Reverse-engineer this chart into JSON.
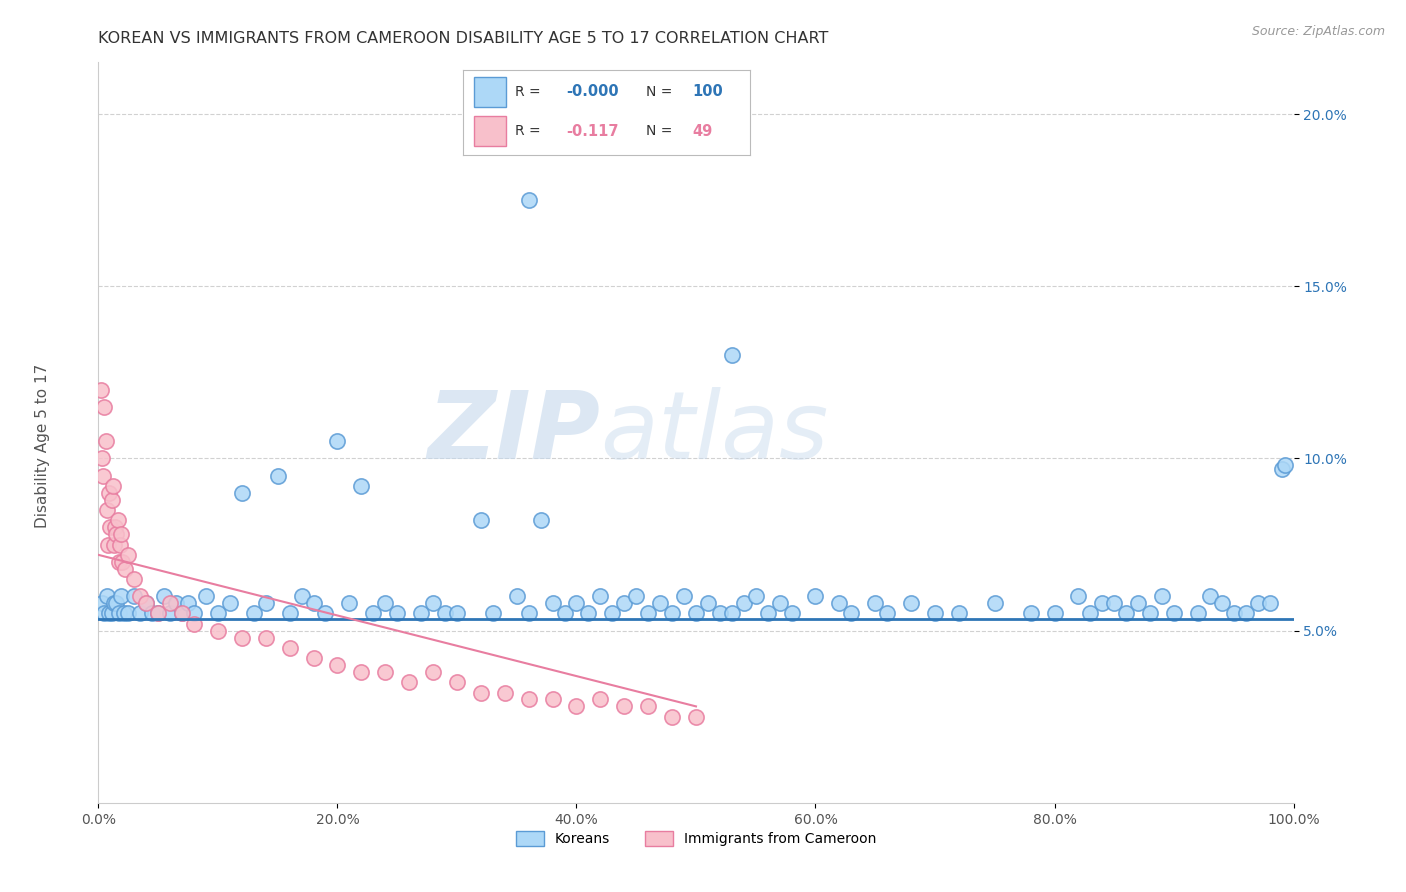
{
  "title": "KOREAN VS IMMIGRANTS FROM CAMEROON DISABILITY AGE 5 TO 17 CORRELATION CHART",
  "source": "Source: ZipAtlas.com",
  "xlabel": "",
  "ylabel": "Disability Age 5 to 17",
  "legend_label1": "Koreans",
  "legend_label2": "Immigrants from Cameroon",
  "r1": "-0.000",
  "n1": "100",
  "r2": "-0.117",
  "n2": "49",
  "color1": "#ADD8F7",
  "color2": "#F8C0CB",
  "edge1": "#5B9BD5",
  "edge2": "#E87DA0",
  "trend1_color": "#2E75B6",
  "trend2_color": "#E87DA0",
  "watermark_zip": "#C8D8E8",
  "watermark_atlas": "#C8D8E8",
  "bg_color": "#FFFFFF",
  "grid_color": "#CCCCCC",
  "xlim": [
    0.0,
    100.0
  ],
  "ylim": [
    0.0,
    0.215
  ],
  "xtick_vals": [
    0.0,
    20.0,
    40.0,
    60.0,
    80.0,
    100.0
  ],
  "ytick_vals": [
    0.05,
    0.1,
    0.15,
    0.2
  ],
  "ytick_labels": [
    "5.0%",
    "10.0%",
    "15.0%",
    "20.0%"
  ],
  "xtick_labels": [
    "0.0%",
    "20.0%",
    "40.0%",
    "60.0%",
    "80.0%",
    "100.0%"
  ],
  "blue_x": [
    0.3,
    0.5,
    0.7,
    0.9,
    1.1,
    1.3,
    1.5,
    1.7,
    1.9,
    2.1,
    2.5,
    3.0,
    3.5,
    4.0,
    4.5,
    5.0,
    5.5,
    6.0,
    6.5,
    7.0,
    7.5,
    8.0,
    9.0,
    10.0,
    11.0,
    12.0,
    13.0,
    14.0,
    15.0,
    16.0,
    17.0,
    18.0,
    19.0,
    20.0,
    21.0,
    22.0,
    23.0,
    24.0,
    25.0,
    27.0,
    28.0,
    29.0,
    30.0,
    32.0,
    33.0,
    35.0,
    36.0,
    37.0,
    38.0,
    39.0,
    40.0,
    41.0,
    42.0,
    43.0,
    44.0,
    45.0,
    46.0,
    47.0,
    48.0,
    49.0,
    50.0,
    51.0,
    52.0,
    53.0,
    54.0,
    55.0,
    56.0,
    57.0,
    58.0,
    60.0,
    62.0,
    63.0,
    65.0,
    66.0,
    68.0,
    70.0,
    72.0,
    75.0,
    78.0,
    80.0,
    82.0,
    83.0,
    84.0,
    85.0,
    86.0,
    87.0,
    88.0,
    89.0,
    90.0,
    92.0,
    93.0,
    94.0,
    95.0,
    96.0,
    97.0,
    98.0,
    99.0,
    99.3,
    36.0,
    53.0
  ],
  "blue_y": [
    0.058,
    0.055,
    0.06,
    0.055,
    0.055,
    0.058,
    0.058,
    0.055,
    0.06,
    0.055,
    0.055,
    0.06,
    0.055,
    0.058,
    0.055,
    0.055,
    0.06,
    0.055,
    0.058,
    0.055,
    0.058,
    0.055,
    0.06,
    0.055,
    0.058,
    0.09,
    0.055,
    0.058,
    0.095,
    0.055,
    0.06,
    0.058,
    0.055,
    0.105,
    0.058,
    0.092,
    0.055,
    0.058,
    0.055,
    0.055,
    0.058,
    0.055,
    0.055,
    0.082,
    0.055,
    0.06,
    0.055,
    0.082,
    0.058,
    0.055,
    0.058,
    0.055,
    0.06,
    0.055,
    0.058,
    0.06,
    0.055,
    0.058,
    0.055,
    0.06,
    0.055,
    0.058,
    0.055,
    0.055,
    0.058,
    0.06,
    0.055,
    0.058,
    0.055,
    0.06,
    0.058,
    0.055,
    0.058,
    0.055,
    0.058,
    0.055,
    0.055,
    0.058,
    0.055,
    0.055,
    0.06,
    0.055,
    0.058,
    0.058,
    0.055,
    0.058,
    0.055,
    0.06,
    0.055,
    0.055,
    0.06,
    0.058,
    0.055,
    0.055,
    0.058,
    0.058,
    0.097,
    0.098,
    0.175,
    0.13
  ],
  "pink_x": [
    0.2,
    0.3,
    0.4,
    0.5,
    0.6,
    0.7,
    0.8,
    0.9,
    1.0,
    1.1,
    1.2,
    1.3,
    1.4,
    1.5,
    1.6,
    1.7,
    1.8,
    1.9,
    2.0,
    2.2,
    2.5,
    3.0,
    3.5,
    4.0,
    5.0,
    6.0,
    7.0,
    8.0,
    10.0,
    12.0,
    14.0,
    16.0,
    18.0,
    20.0,
    22.0,
    24.0,
    26.0,
    28.0,
    30.0,
    32.0,
    34.0,
    36.0,
    38.0,
    40.0,
    42.0,
    44.0,
    46.0,
    48.0,
    50.0
  ],
  "pink_y": [
    0.12,
    0.1,
    0.095,
    0.115,
    0.105,
    0.085,
    0.075,
    0.09,
    0.08,
    0.088,
    0.092,
    0.075,
    0.08,
    0.078,
    0.082,
    0.07,
    0.075,
    0.078,
    0.07,
    0.068,
    0.072,
    0.065,
    0.06,
    0.058,
    0.055,
    0.058,
    0.055,
    0.052,
    0.05,
    0.048,
    0.048,
    0.045,
    0.042,
    0.04,
    0.038,
    0.038,
    0.035,
    0.038,
    0.035,
    0.032,
    0.032,
    0.03,
    0.03,
    0.028,
    0.03,
    0.028,
    0.028,
    0.025,
    0.025
  ],
  "blue_trend_y": 0.0535,
  "pink_trend_x0": 0.0,
  "pink_trend_y0": 0.072,
  "pink_trend_x1": 50.0,
  "pink_trend_y1": 0.028
}
